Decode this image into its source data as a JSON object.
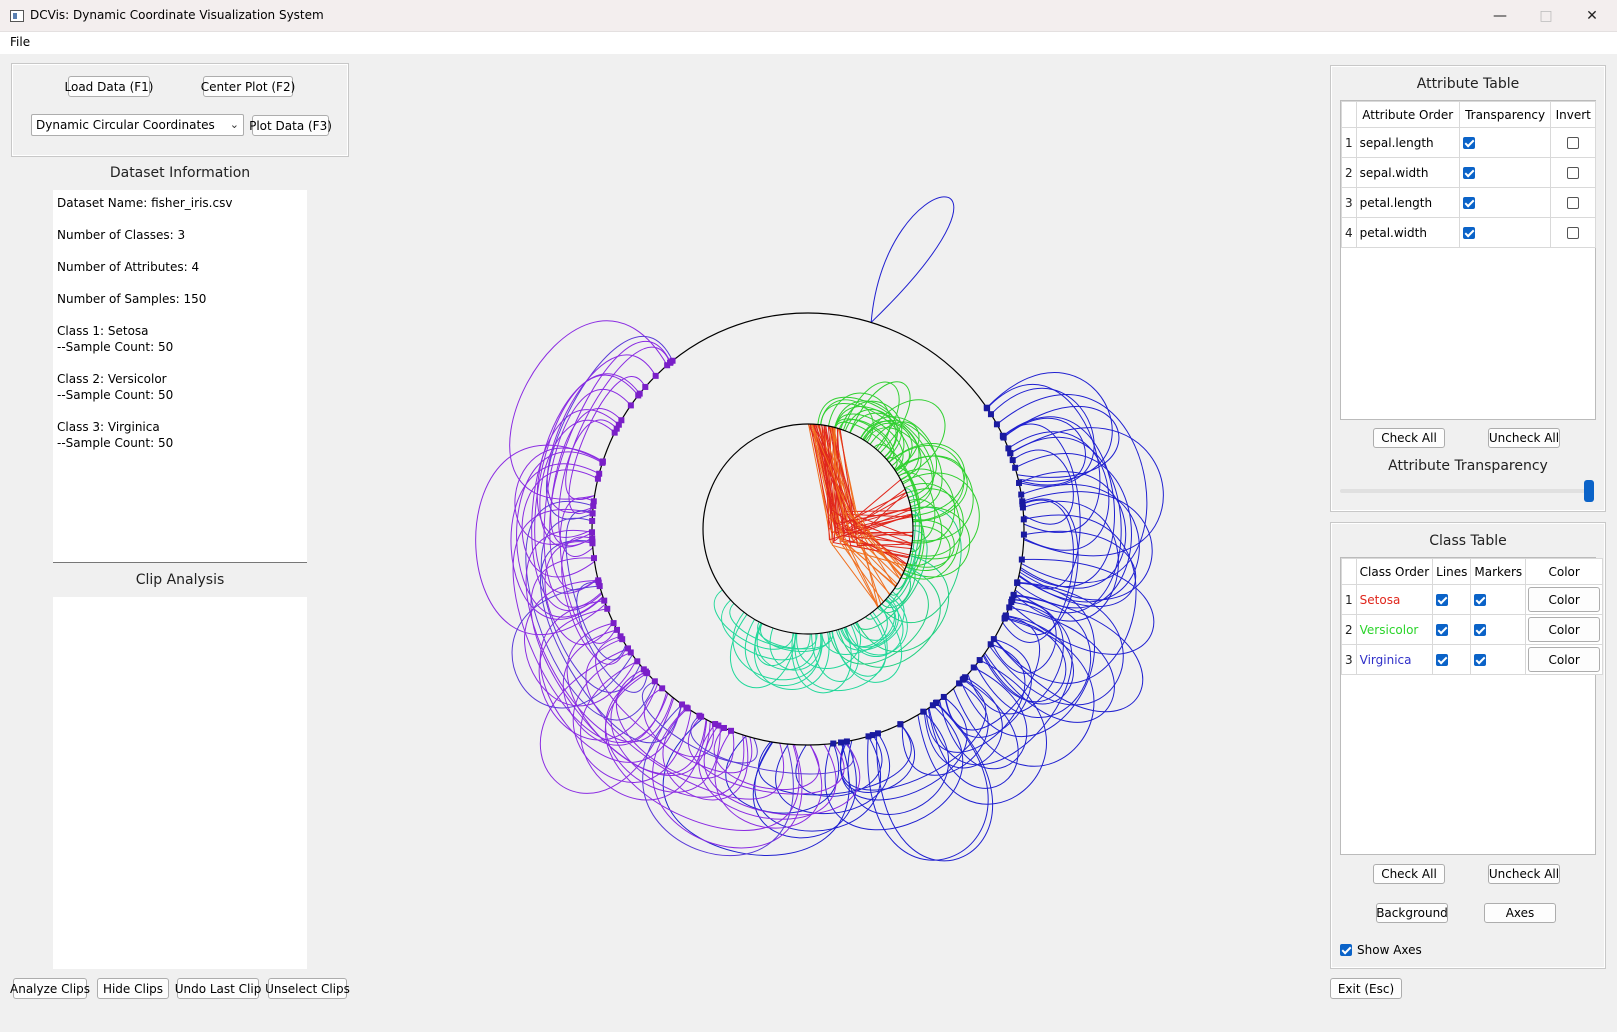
{
  "window": {
    "title": "DCVis: Dynamic Coordinate Visualization System",
    "minimize": "—",
    "maximize": "□",
    "close": "✕"
  },
  "menu": {
    "file": "File"
  },
  "controls": {
    "load_data": "Load Data (F1)",
    "center_plot": "Center Plot (F2)",
    "plot_type": "Dynamic Circular Coordinates",
    "plot_data": "Plot Data (F3)"
  },
  "dataset_info": {
    "title": "Dataset Information",
    "lines": [
      "Dataset Name: fisher_iris.csv",
      "Number of Classes: 3",
      "Number of Attributes: 4",
      "Number of Samples: 150",
      "Class 1: Setosa",
      "--Sample Count: 50",
      "Class 2: Versicolor",
      "--Sample Count: 50",
      "Class 3: Virginica",
      "--Sample Count: 50"
    ]
  },
  "clip_analysis": {
    "title": "Clip Analysis"
  },
  "clip_buttons": {
    "analyze": "Analyze Clips",
    "hide": "Hide Clips",
    "undo": "Undo Last Clip",
    "unselect": "Unselect Clips"
  },
  "attribute_table": {
    "title": "Attribute Table",
    "headers": {
      "order": "Attribute Order",
      "transparency": "Transparency",
      "invert": "Invert"
    },
    "rows": [
      {
        "index": "1",
        "name": "sepal.length",
        "transparency": true,
        "invert": false
      },
      {
        "index": "2",
        "name": "sepal.width",
        "transparency": true,
        "invert": false
      },
      {
        "index": "3",
        "name": "petal.length",
        "transparency": true,
        "invert": false
      },
      {
        "index": "4",
        "name": "petal.width",
        "transparency": true,
        "invert": false
      }
    ],
    "check_all": "Check All",
    "uncheck_all": "Uncheck All",
    "transparency_label": "Attribute Transparency",
    "transparency_level": 1.0
  },
  "class_table": {
    "title": "Class Table",
    "headers": {
      "order": "Class Order",
      "lines": "Lines",
      "markers": "Markers",
      "color": "Color"
    },
    "rows": [
      {
        "index": "1",
        "name": "Setosa",
        "lines": true,
        "markers": true,
        "color_label": "Color",
        "color": "#e0261c"
      },
      {
        "index": "2",
        "name": "Versicolor",
        "lines": true,
        "markers": true,
        "color_label": "Color",
        "color": "#2ad42a"
      },
      {
        "index": "3",
        "name": "Virginica",
        "lines": true,
        "markers": true,
        "color_label": "Color",
        "color": "#2f2fc8"
      }
    ],
    "check_all": "Check All",
    "uncheck_all": "Uncheck All",
    "background": "Background",
    "axes": "Axes",
    "show_axes": "Show Axes",
    "show_axes_checked": true
  },
  "exit": "Exit (Esc)"
}
